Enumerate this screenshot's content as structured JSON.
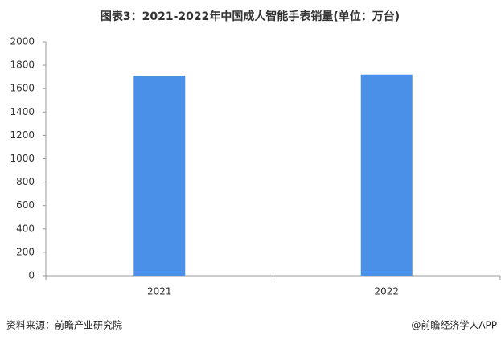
{
  "chart_data": {
    "type": "bar",
    "title": "图表3：2021-2022年中国成人智能手表销量(单位：万台)",
    "categories": [
      "2021",
      "2022"
    ],
    "values": [
      1710,
      1720
    ],
    "color": "#4a90e8",
    "ylim": [
      0,
      2000
    ],
    "yticks": [
      0,
      200,
      400,
      600,
      800,
      1000,
      1200,
      1400,
      1600,
      1800,
      2000
    ],
    "source": "资料来源：前瞻产业研究院",
    "credit": "@前瞻经济学人APP"
  }
}
